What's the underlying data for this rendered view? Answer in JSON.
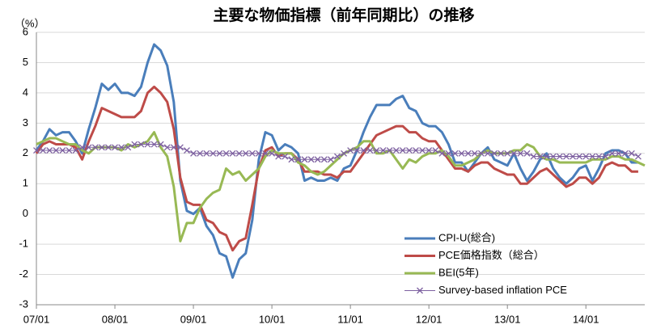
{
  "chart_data": {
    "type": "line",
    "title": "主要な物価指標（前年同期比）の推移",
    "y_label": "（%）",
    "categories": [
      "07/01",
      null,
      null,
      null,
      null,
      null,
      null,
      null,
      null,
      null,
      null,
      null,
      "08/01",
      null,
      null,
      null,
      null,
      null,
      null,
      null,
      null,
      null,
      null,
      null,
      "09/01",
      null,
      null,
      null,
      null,
      null,
      null,
      null,
      null,
      null,
      null,
      null,
      "10/01",
      null,
      null,
      null,
      null,
      null,
      null,
      null,
      null,
      null,
      null,
      null,
      "11/01",
      null,
      null,
      null,
      null,
      null,
      null,
      null,
      null,
      null,
      null,
      null,
      "12/01",
      null,
      null,
      null,
      null,
      null,
      null,
      null,
      null,
      null,
      null,
      null,
      "13/01",
      null,
      null,
      null,
      null,
      null,
      null,
      null,
      null,
      null,
      null,
      null,
      "14/01",
      null,
      null,
      null,
      null,
      null,
      null,
      null,
      null,
      null
    ],
    "ylim": [
      -3,
      6
    ],
    "yticks": [
      -3,
      -2,
      -1,
      0,
      1,
      2,
      3,
      4,
      5,
      6
    ],
    "grid": true,
    "legend": "lower right",
    "series": [
      {
        "name": "CPI-U(総合)",
        "color": "#4a7ebb",
        "values": [
          2.1,
          2.4,
          2.8,
          2.6,
          2.7,
          2.7,
          2.4,
          2.0,
          2.8,
          3.5,
          4.3,
          4.1,
          4.3,
          4.0,
          4.0,
          3.9,
          4.2,
          5.0,
          5.6,
          5.4,
          4.9,
          3.7,
          1.1,
          0.1,
          0.0,
          0.2,
          -0.4,
          -0.7,
          -1.3,
          -1.4,
          -2.1,
          -1.5,
          -1.3,
          -0.2,
          1.8,
          2.7,
          2.6,
          2.1,
          2.3,
          2.2,
          2.0,
          1.1,
          1.2,
          1.1,
          1.1,
          1.2,
          1.1,
          1.5,
          1.6,
          2.1,
          2.7,
          3.2,
          3.6,
          3.6,
          3.6,
          3.8,
          3.9,
          3.5,
          3.4,
          3.0,
          2.9,
          2.9,
          2.7,
          2.3,
          1.7,
          1.7,
          1.4,
          1.7,
          2.0,
          2.2,
          1.8,
          1.7,
          1.6,
          2.0,
          1.5,
          1.1,
          1.4,
          1.8,
          2.0,
          1.5,
          1.2,
          1.0,
          1.2,
          1.5,
          1.6,
          1.1,
          1.5,
          2.0,
          2.1,
          2.1,
          2.0,
          1.7,
          1.7,
          null
        ]
      },
      {
        "name": "PCE価格指数（総合）",
        "color": "#be4b48",
        "values": [
          2.0,
          2.3,
          2.4,
          2.3,
          2.3,
          2.3,
          2.2,
          1.8,
          2.4,
          2.9,
          3.5,
          3.4,
          3.3,
          3.2,
          3.2,
          3.2,
          3.4,
          4.0,
          4.2,
          4.0,
          3.7,
          2.8,
          1.2,
          0.4,
          0.3,
          0.3,
          -0.2,
          -0.3,
          -0.6,
          -0.7,
          -1.2,
          -0.9,
          -0.8,
          0.3,
          1.5,
          2.1,
          2.2,
          1.9,
          2.0,
          2.0,
          1.8,
          1.4,
          1.4,
          1.4,
          1.3,
          1.3,
          1.2,
          1.4,
          1.4,
          1.7,
          2.0,
          2.3,
          2.6,
          2.7,
          2.8,
          2.9,
          2.9,
          2.7,
          2.7,
          2.5,
          2.4,
          2.4,
          2.1,
          1.8,
          1.5,
          1.5,
          1.4,
          1.6,
          1.7,
          1.7,
          1.5,
          1.4,
          1.3,
          1.3,
          1.0,
          1.0,
          1.2,
          1.4,
          1.5,
          1.3,
          1.1,
          0.9,
          1.0,
          1.2,
          1.2,
          1.0,
          1.2,
          1.6,
          1.7,
          1.6,
          1.6,
          1.4,
          1.4,
          null
        ]
      },
      {
        "name": "BEI(5年)",
        "color": "#98b954",
        "values": [
          2.3,
          2.4,
          2.5,
          2.5,
          2.4,
          2.3,
          2.3,
          2.1,
          2.0,
          2.2,
          2.2,
          2.2,
          2.2,
          2.1,
          2.3,
          2.2,
          2.3,
          2.4,
          2.7,
          2.2,
          1.9,
          0.9,
          -0.9,
          -0.3,
          -0.3,
          0.2,
          0.5,
          0.7,
          0.8,
          1.5,
          1.3,
          1.4,
          1.1,
          1.3,
          1.5,
          1.9,
          2.1,
          2.0,
          2.0,
          2.0,
          1.7,
          1.6,
          1.4,
          1.3,
          1.4,
          1.6,
          1.8,
          2.0,
          2.1,
          2.2,
          2.4,
          2.4,
          2.0,
          2.0,
          2.1,
          1.8,
          1.5,
          1.8,
          1.7,
          1.9,
          2.0,
          2.0,
          2.1,
          1.9,
          1.6,
          1.6,
          1.7,
          1.8,
          2.0,
          2.1,
          2.0,
          2.0,
          2.0,
          2.1,
          2.1,
          2.3,
          2.2,
          1.9,
          1.8,
          1.8,
          1.7,
          1.7,
          1.7,
          1.7,
          1.7,
          1.8,
          1.8,
          1.8,
          1.9,
          1.9,
          1.8,
          1.8,
          1.7,
          1.6
        ]
      },
      {
        "name": "Survey-based inflation PCE",
        "color": "#7d60a0",
        "marker": "x",
        "values": [
          2.1,
          2.1,
          2.1,
          2.1,
          2.1,
          2.1,
          2.1,
          2.2,
          2.2,
          2.2,
          2.2,
          2.2,
          2.2,
          2.2,
          2.2,
          2.3,
          2.3,
          2.3,
          2.3,
          2.3,
          2.2,
          2.2,
          2.2,
          2.1,
          2.0,
          2.0,
          2.0,
          2.0,
          2.0,
          2.0,
          2.0,
          2.0,
          2.0,
          2.0,
          2.0,
          2.0,
          2.0,
          1.9,
          1.9,
          1.8,
          1.8,
          1.8,
          1.8,
          1.8,
          1.8,
          1.8,
          1.9,
          2.0,
          2.1,
          2.1,
          2.1,
          2.1,
          2.1,
          2.1,
          2.1,
          2.1,
          2.1,
          2.1,
          2.1,
          2.1,
          2.1,
          2.1,
          2.0,
          2.0,
          2.0,
          2.0,
          2.0,
          2.0,
          2.0,
          2.0,
          2.0,
          2.0,
          2.0,
          2.0,
          2.0,
          2.0,
          1.9,
          1.9,
          1.9,
          1.9,
          1.9,
          1.9,
          1.9,
          1.9,
          1.9,
          1.9,
          1.9,
          1.9,
          2.0,
          2.0,
          2.0,
          2.0,
          1.9,
          null
        ]
      }
    ]
  }
}
